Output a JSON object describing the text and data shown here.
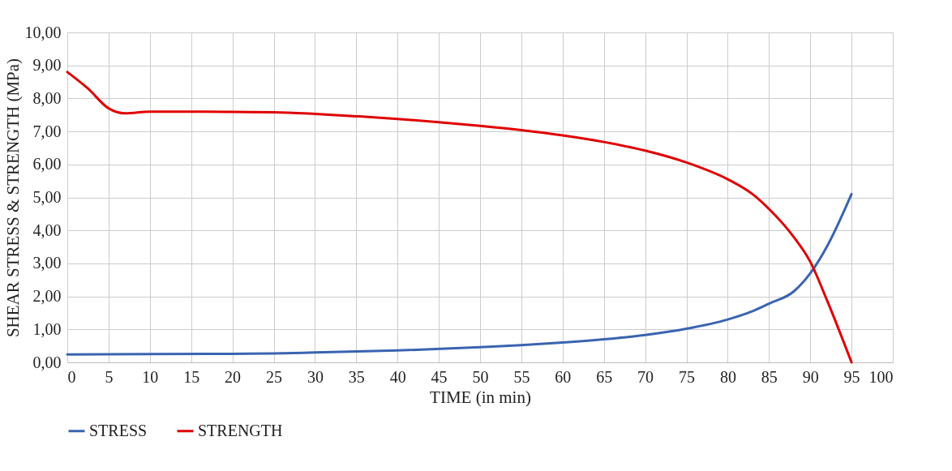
{
  "chart_data": {
    "type": "line",
    "xlabel": "TIME (in min)",
    "ylabel": "SHEAR  STRESS & STRENGTH (MPa)",
    "xlim": [
      0,
      100
    ],
    "xticks": [
      0,
      5,
      10,
      15,
      20,
      25,
      30,
      35,
      40,
      45,
      50,
      55,
      60,
      65,
      70,
      75,
      80,
      85,
      90,
      95,
      100
    ],
    "ylim": [
      0,
      10
    ],
    "yticks": [
      {
        "value": 0,
        "label": "0,00"
      },
      {
        "value": 1,
        "label": "1,00"
      },
      {
        "value": 2,
        "label": "2,00"
      },
      {
        "value": 3,
        "label": "3,00"
      },
      {
        "value": 4,
        "label": "4,00"
      },
      {
        "value": 5,
        "label": "5,00"
      },
      {
        "value": 6,
        "label": "6,00"
      },
      {
        "value": 7,
        "label": "7,00"
      },
      {
        "value": 8,
        "label": "8,00"
      },
      {
        "value": 9,
        "label": "9,00"
      },
      {
        "value": 10,
        "label": "10,00"
      }
    ],
    "grid": true,
    "legend": "bottom",
    "line_style": "solid",
    "marker": "none",
    "series": [
      {
        "name": "STRESS",
        "color": "#3a64b0",
        "x": [
          0,
          10,
          20,
          25,
          30,
          40,
          50,
          55,
          60,
          65,
          70,
          75,
          80,
          83,
          85,
          88,
          90,
          92,
          95
        ],
        "values": [
          0.24,
          0.25,
          0.26,
          0.27,
          0.3,
          0.36,
          0.46,
          0.52,
          0.6,
          0.7,
          0.83,
          1.02,
          1.3,
          1.55,
          1.78,
          2.15,
          2.7,
          3.5,
          5.1
        ]
      },
      {
        "name": "STRENGTH",
        "color": "#e00000",
        "x": [
          0,
          2.5,
          5,
          7,
          10,
          15,
          20,
          25,
          30,
          35,
          40,
          45,
          50,
          55,
          60,
          65,
          70,
          75,
          80,
          83,
          85,
          88,
          90,
          92,
          95
        ],
        "values": [
          8.8,
          8.3,
          7.7,
          7.55,
          7.6,
          7.6,
          7.59,
          7.58,
          7.53,
          7.46,
          7.38,
          7.28,
          7.17,
          7.04,
          6.88,
          6.68,
          6.42,
          6.06,
          5.55,
          5.1,
          4.65,
          3.8,
          3.05,
          1.9,
          0
        ]
      }
    ]
  }
}
